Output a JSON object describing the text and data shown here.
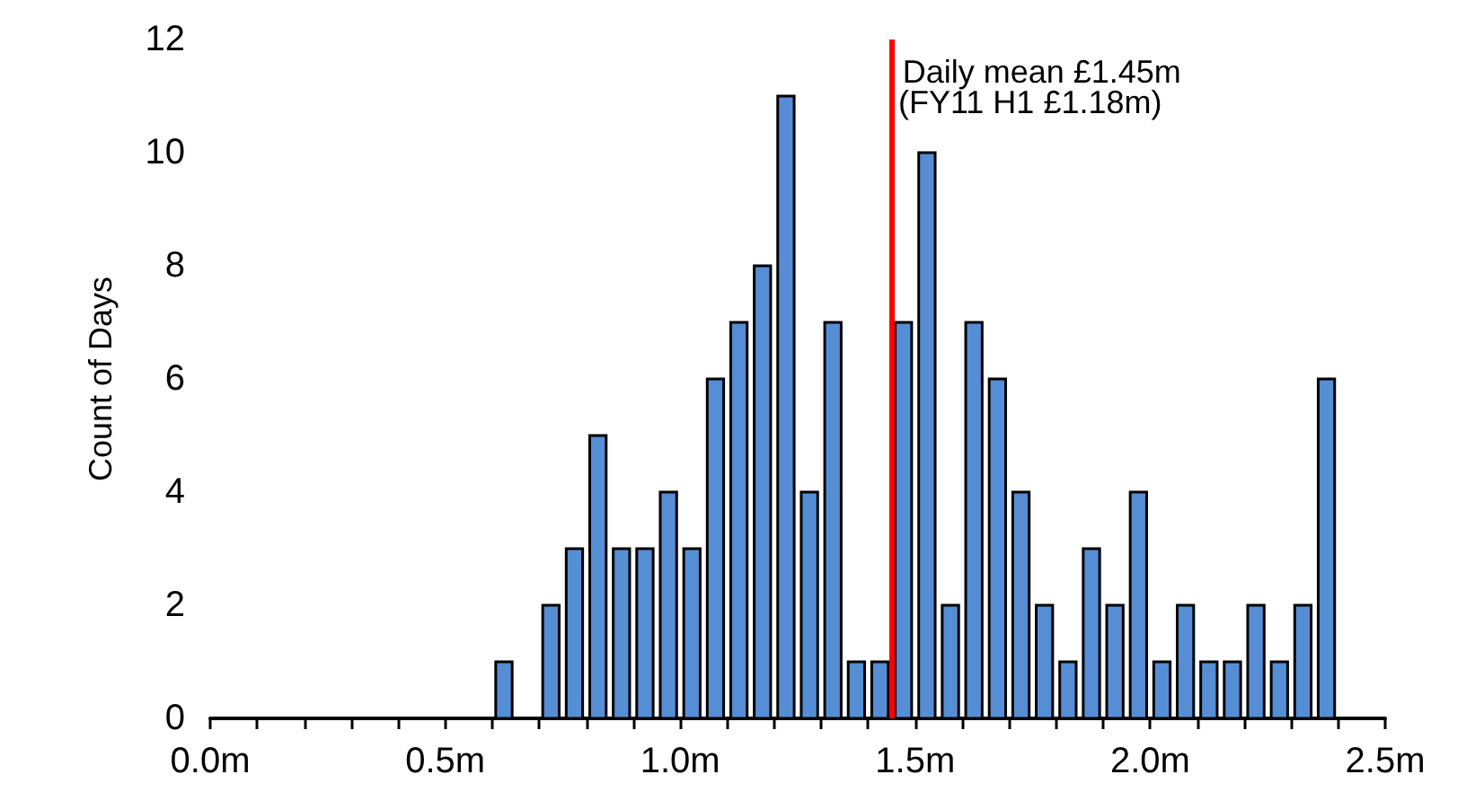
{
  "chart_data": {
    "type": "histogram",
    "ylabel": "Count of Days",
    "bins": [
      0.6,
      0.65,
      0.7,
      0.75,
      0.8,
      0.85,
      0.9,
      0.95,
      1.0,
      1.05,
      1.1,
      1.15,
      1.2,
      1.25,
      1.3,
      1.35,
      1.4,
      1.45,
      1.5,
      1.55,
      1.6,
      1.65,
      1.7,
      1.75,
      1.8,
      1.85,
      1.9,
      1.95,
      2.0,
      2.05,
      2.1,
      2.15,
      2.2,
      2.25,
      2.3,
      2.35,
      2.4
    ],
    "values": [
      1,
      0,
      2,
      3,
      5,
      3,
      3,
      4,
      3,
      6,
      7,
      8,
      11,
      4,
      7,
      1,
      1,
      7,
      10,
      2,
      7,
      6,
      4,
      2,
      1,
      3,
      2,
      4,
      1,
      2,
      1,
      1,
      2,
      1,
      2,
      6
    ],
    "color": "#558ed5",
    "xlim": [
      0,
      2.5
    ],
    "xticks": [
      {
        "value": 0,
        "label": "0.0m"
      },
      {
        "value": 0.5,
        "label": "0.5m"
      },
      {
        "value": 1.0,
        "label": "1.0m"
      },
      {
        "value": 1.5,
        "label": "1.5m"
      },
      {
        "value": 2.0,
        "label": "2.0m"
      },
      {
        "value": 2.5,
        "label": "2.5m"
      }
    ],
    "ylim": [
      0,
      12
    ],
    "yticks": [
      0,
      2,
      4,
      6,
      8,
      10,
      12
    ],
    "grid": false,
    "ref_lines": [
      {
        "axis": "x",
        "value": 1.45,
        "label": "Daily mean £1.45m",
        "color": "#ff0000"
      }
    ],
    "annotations": [
      "(FY11 H1 £1.18m)"
    ]
  }
}
